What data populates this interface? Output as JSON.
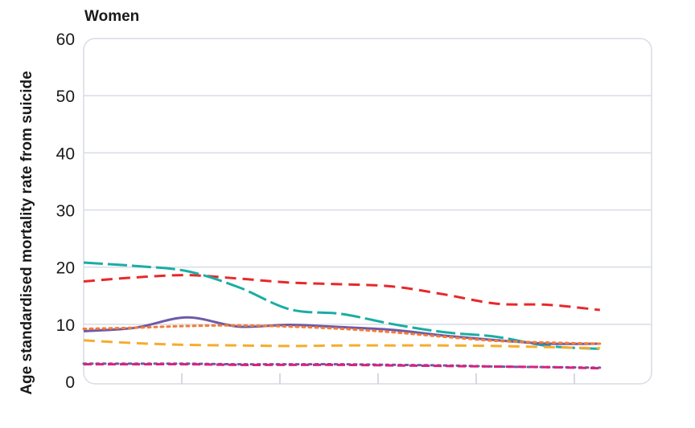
{
  "chart_data": {
    "type": "line",
    "title": "Women",
    "ylabel": "Age standardised mortality rate from suicide",
    "xlabel": "",
    "ylim": [
      0,
      60
    ],
    "yticks": [
      "0",
      "10",
      "20",
      "30",
      "40",
      "50",
      "60"
    ],
    "x": [
      0,
      1,
      2,
      3,
      4,
      5,
      6,
      7,
      8,
      9,
      10
    ],
    "xlim": [
      0,
      11
    ],
    "grid": true,
    "series": [
      {
        "color": "#e8282b",
        "dash": "14 8",
        "values": [
          17.5,
          18.2,
          18.6,
          18.0,
          17.3,
          17.0,
          16.6,
          15.2,
          13.6,
          13.4,
          12.5
        ]
      },
      {
        "color": "#1aada4",
        "dash": "24 6",
        "values": [
          20.8,
          20.2,
          19.3,
          16.5,
          12.6,
          11.8,
          10.0,
          8.6,
          7.8,
          6.2,
          5.7
        ]
      },
      {
        "color": "#6d5aa9",
        "dash": "",
        "values": [
          8.8,
          9.4,
          11.2,
          9.6,
          9.9,
          9.5,
          9.0,
          8.0,
          7.2,
          6.6,
          6.6
        ]
      },
      {
        "color": "#f47c36",
        "dash": "3 5",
        "values": [
          9.2,
          9.4,
          9.7,
          9.8,
          9.6,
          9.2,
          8.6,
          7.8,
          7.1,
          6.8,
          6.6
        ]
      },
      {
        "color": "#f6ac2c",
        "dash": "14 8",
        "values": [
          7.2,
          6.7,
          6.4,
          6.3,
          6.2,
          6.3,
          6.3,
          6.3,
          6.2,
          6.0,
          5.8
        ]
      },
      {
        "color": "#6d5aa9",
        "dash": "3 5",
        "values": [
          3.1,
          3.1,
          3.1,
          3.0,
          3.0,
          3.0,
          2.9,
          2.8,
          2.6,
          2.5,
          2.4
        ]
      },
      {
        "color": "#d6247c",
        "dash": "10 5",
        "values": [
          3.0,
          3.0,
          3.0,
          2.9,
          2.9,
          2.9,
          2.8,
          2.7,
          2.6,
          2.5,
          2.3
        ]
      }
    ]
  }
}
